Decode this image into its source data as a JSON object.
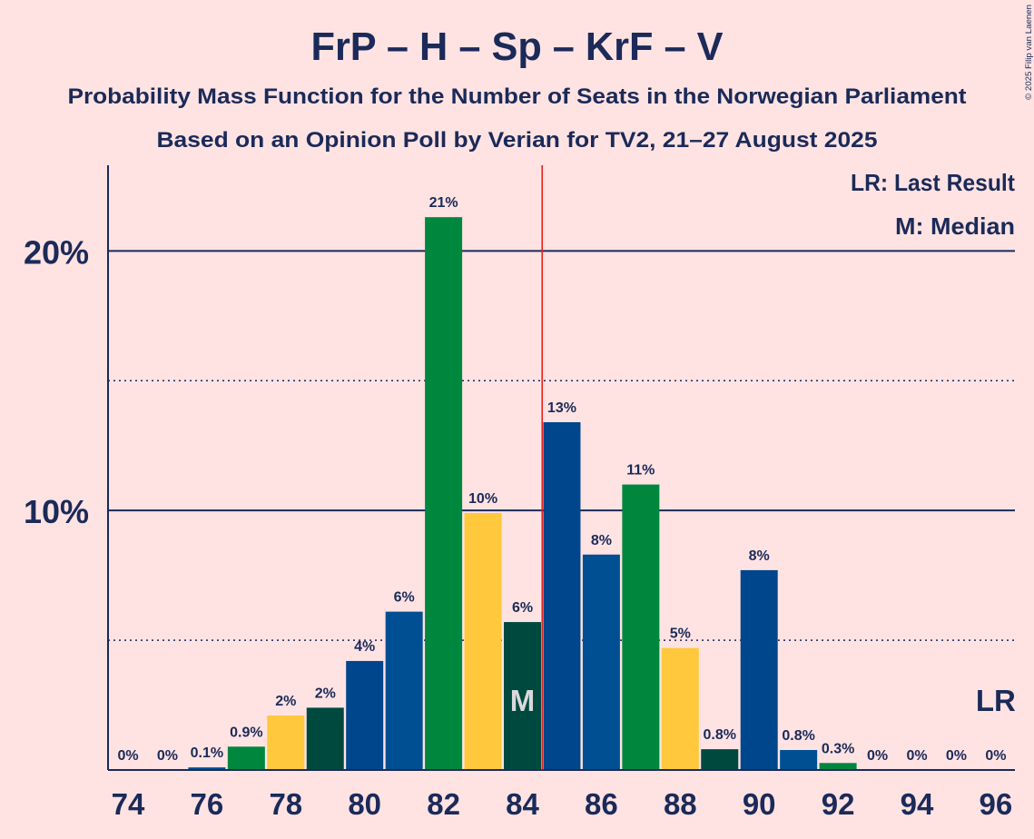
{
  "chart_data": {
    "type": "bar",
    "title": "FrP – H – Sp – KrF – V",
    "subtitle": "Probability Mass Function for the Number of Seats in the Norwegian Parliament",
    "subtitle2": "Based on an Opinion Poll by Verian for TV2, 21–27 August 2025",
    "xlabel": "",
    "ylabel": "",
    "x": [
      74,
      75,
      76,
      77,
      78,
      79,
      80,
      81,
      82,
      83,
      84,
      85,
      86,
      87,
      88,
      89,
      90,
      91,
      92,
      93,
      94,
      95,
      96
    ],
    "values": [
      0,
      0,
      0.1,
      0.9,
      2.1,
      2.4,
      4.2,
      6.1,
      21.3,
      9.9,
      5.7,
      13.4,
      8.3,
      11.0,
      4.7,
      0.8,
      7.7,
      0.77,
      0.27,
      0,
      0,
      0,
      0
    ],
    "value_labels": [
      "0%",
      "0%",
      "0.1%",
      "0.9%",
      "2%",
      "2%",
      "4%",
      "6%",
      "21%",
      "10%",
      "6%",
      "13%",
      "8%",
      "11%",
      "5%",
      "0.8%",
      "8%",
      "0.8%",
      "0.3%",
      "0%",
      "0%",
      "0%",
      "0%"
    ],
    "bar_colors": [
      "#00493F",
      "#00468C",
      "#004F93",
      "#00873E",
      "#FFC83D",
      "#00493F",
      "#00468C",
      "#004F93",
      "#00873E",
      "#FFC83D",
      "#00493F",
      "#00468C",
      "#004F93",
      "#00873E",
      "#FFC83D",
      "#00493F",
      "#00468C",
      "#004F93",
      "#00873E",
      "#FFC83D",
      "#00493F",
      "#00468C",
      "#004F93"
    ],
    "ylim": [
      0,
      23.3
    ],
    "y_major_ticks": [
      {
        "value": 20,
        "label": "20%"
      },
      {
        "value": 10,
        "label": "10%"
      }
    ],
    "y_minor_gridlines": [
      15,
      5
    ],
    "x_ticks": [
      {
        "seat": 74,
        "label": "74"
      },
      {
        "seat": 76,
        "label": "76"
      },
      {
        "seat": 78,
        "label": "78"
      },
      {
        "seat": 80,
        "label": "80"
      },
      {
        "seat": 82,
        "label": "82"
      },
      {
        "seat": 84,
        "label": "84"
      },
      {
        "seat": 86,
        "label": "86"
      },
      {
        "seat": 88,
        "label": "88"
      },
      {
        "seat": 90,
        "label": "90"
      },
      {
        "seat": 92,
        "label": "92"
      },
      {
        "seat": 94,
        "label": "94"
      },
      {
        "seat": 96,
        "label": "96"
      }
    ],
    "majority_line_at": 84.5,
    "median": {
      "seat": 84,
      "label": "M"
    },
    "last_result": {
      "seat": 96,
      "label": "LR"
    },
    "legend": [
      "LR: Last Result",
      "M: Median"
    ],
    "legend_position": "top-right",
    "grid": true,
    "copyright": "© 2025 Filip van Laenen"
  },
  "colors": {
    "text": "#1B2A58",
    "background": "#FFE3E3",
    "majority_line": "#E8211C",
    "median_label": "#DADADA"
  }
}
